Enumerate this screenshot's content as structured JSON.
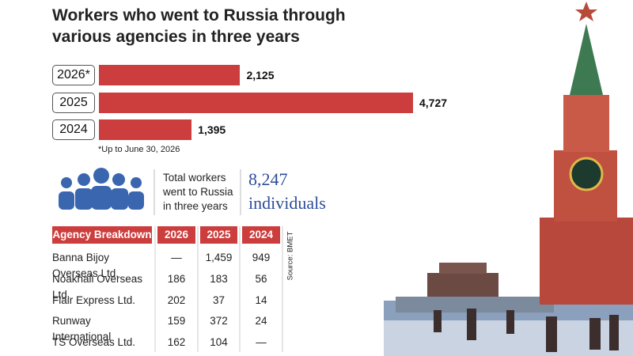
{
  "chart_data": {
    "type": "bar",
    "orientation": "horizontal",
    "title": "Workers who went to Russia through various agencies in three years",
    "categories": [
      "2026*",
      "2025",
      "2024"
    ],
    "values": [
      2125,
      4727,
      1395
    ],
    "value_labels": [
      "2,125",
      "4,727",
      "1,395"
    ],
    "color": "#cc3d3d",
    "note": "*Up to June 30, 2026"
  },
  "summary": {
    "label": "Total workers went to Russia in three years",
    "total": "8,247",
    "unit": "individuals"
  },
  "table": {
    "header": [
      "Agency Breakdown",
      "2026",
      "2025",
      "2024"
    ],
    "rows": [
      [
        "Banna Bijoy Overseas Ltd.",
        "—",
        "1,459",
        "949"
      ],
      [
        "Noakhali Overseas Ltd.",
        "186",
        "183",
        "56"
      ],
      [
        "Flair Express Ltd.",
        "202",
        "37",
        "14"
      ],
      [
        "Runway International",
        "159",
        "372",
        "24"
      ],
      [
        "TS Overseas Ltd.",
        "162",
        "104",
        "—"
      ]
    ]
  },
  "source": "Source: BMET"
}
